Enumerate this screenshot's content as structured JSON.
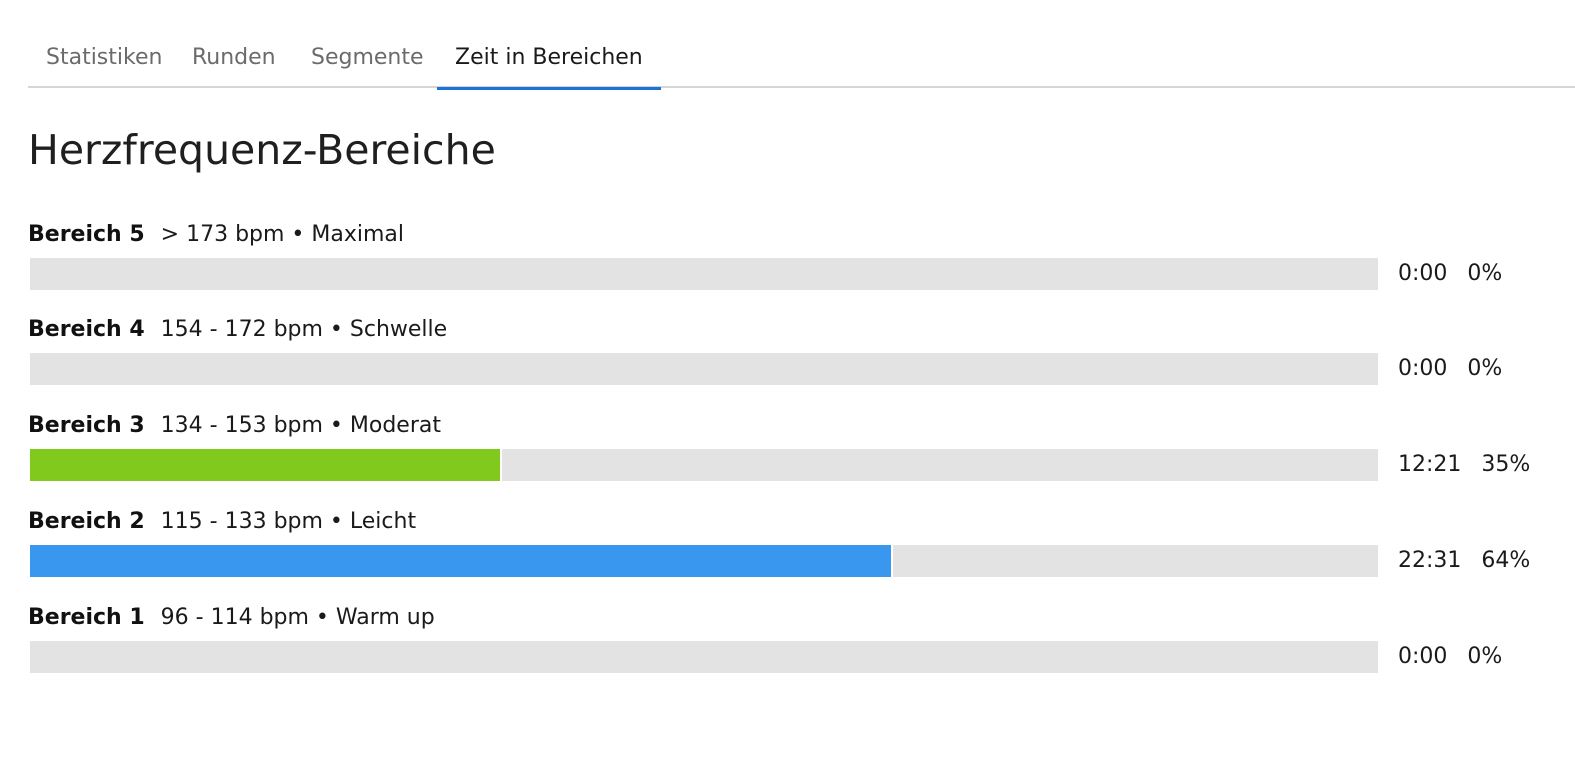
{
  "tabs": [
    {
      "label": "Statistiken",
      "active": false
    },
    {
      "label": "Runden",
      "active": false
    },
    {
      "label": "Segmente",
      "active": false
    },
    {
      "label": "Zeit in Bereichen",
      "active": true
    }
  ],
  "page_title": "Herzfrequenz-Bereiche",
  "zones": [
    {
      "name": "Bereich 5",
      "range": "> 173 bpm • Maximal",
      "time": "0:00",
      "percent": "0%",
      "fraction": 0,
      "color": "#e3e3e3"
    },
    {
      "name": "Bereich 4",
      "range": "154 - 172 bpm • Schwelle",
      "time": "0:00",
      "percent": "0%",
      "fraction": 0,
      "color": "#e3e3e3"
    },
    {
      "name": "Bereich 3",
      "range": "134 - 153 bpm • Moderat",
      "time": "12:21",
      "percent": "35%",
      "fraction": 0.35,
      "color": "#82c91e"
    },
    {
      "name": "Bereich 2",
      "range": "115 - 133 bpm • Leicht",
      "time": "22:31",
      "percent": "64%",
      "fraction": 0.64,
      "color": "#3a97f0"
    },
    {
      "name": "Bereich 1",
      "range": "96 - 114 bpm • Warm up",
      "time": "0:00",
      "percent": "0%",
      "fraction": 0,
      "color": "#e3e3e3"
    }
  ]
}
